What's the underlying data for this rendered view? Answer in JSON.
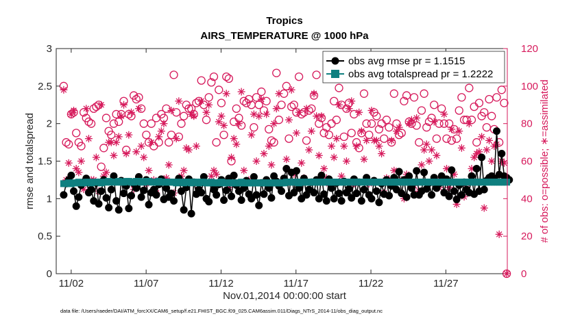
{
  "colors": {
    "rmse": "#000000",
    "spread": "#0f7f7f",
    "obs_count": "#d6195b",
    "axis": "#262626"
  },
  "chart_data": {
    "type": "line",
    "title": "Tropics",
    "subtitle": "AIRS_TEMPERATURE @ 1000 hPa",
    "xlabel": "Nov.01,2014 00:00:00 start",
    "ylabel": "rmse and totalspread",
    "y2label": "# of obs: o=possible; ∗=assimilated",
    "footer": "data file: /Users/raeder/DAI/ATM_forcXX/CAM6_setup/f.e21.FHIST_BGC.f09_025.CAM6assim.011/Diags_NTrS_2014-11/obs_diag_output.nc",
    "xlim": [
      0.5,
      30.6
    ],
    "ylim": [
      0,
      3
    ],
    "y2lim": [
      0,
      120
    ],
    "x_ticks": [
      1.5,
      6.5,
      11.5,
      16.5,
      21.5,
      26.5
    ],
    "x_tick_labels": [
      "11/02",
      "11/07",
      "11/12",
      "11/17",
      "11/22",
      "11/27"
    ],
    "y_ticks": [
      "0",
      "0.5",
      "1",
      "1.5",
      "2",
      "2.5",
      "3"
    ],
    "y2_ticks": [
      "0",
      "20",
      "40",
      "60",
      "80",
      "100",
      "120"
    ],
    "legend_position": "top-right",
    "series": [
      {
        "name": "obs avg rmse pr = 1.1515",
        "axis": "left",
        "marker": "filled-circle",
        "values": [
          1.05,
          1.2,
          1.25,
          1.31,
          1.1,
          0.9,
          1.02,
          1.18,
          1.22,
          1.27,
          1.08,
          1.12,
          0.97,
          1.21,
          0.93,
          1.1,
          1.25,
          1.01,
          0.88,
          1.12,
          1.3,
          0.97,
          0.85,
          1.24,
          1.07,
          1.17,
          0.87,
          1.04,
          1.2,
          1.14,
          1.29,
          1.02,
          1.11,
          1.25,
          0.92,
          1.08,
          1.12,
          1.05,
          1.19,
          1.26,
          0.99,
          1.14,
          1.02,
          1.07,
          0.97,
          1.22,
          1.27,
          1.1,
          0.85,
          1.15,
          1.26,
          0.8,
          1.22,
          1.06,
          1.12,
          1.08,
          1.29,
          1.0,
          0.96,
          1.21,
          1.12,
          1.05,
          1.19,
          1.25,
          0.98,
          1.11,
          1.27,
          1.03,
          1.31,
          1.18,
          1.1,
          0.98,
          1.14,
          1.24,
          1.06,
          1.0,
          1.29,
          1.05,
          0.91,
          1.21,
          1.06,
          1.25,
          1.14,
          1.01,
          1.3,
          1.23,
          1.17,
          1.1,
          1.27,
          1.4,
          1.04,
          1.35,
          1.08,
          1.37,
          1.14,
          1.0,
          1.27,
          1.05,
          1.12,
          1.22,
          1.08,
          1.25,
          1.0,
          1.31,
          1.06,
          0.97,
          1.26,
          1.14,
          1.0,
          1.21,
          1.07,
          0.97,
          1.23,
          1.08,
          1.13,
          1.01,
          1.26,
          1.07,
          1.22,
          0.97,
          1.12,
          1.28,
          1.05,
          1.0,
          1.24,
          1.1,
          0.95,
          1.2,
          1.06,
          1.25,
          1.04,
          1.17,
          1.28,
          1.12,
          1.36,
          1.07,
          1.25,
          1.02,
          1.3,
          1.14,
          1.05,
          1.37,
          1.05,
          1.1,
          1.35,
          1.13,
          1.21,
          1.05,
          1.28,
          1.14,
          1.2,
          1.3,
          1.08,
          1.26,
          1.03,
          1.38,
          1.1,
          0.99,
          1.18,
          1.05,
          1.22,
          1.12,
          1.08,
          1.3,
          1.06,
          1.4,
          1.1,
          1.55,
          1.12,
          1.24,
          1.28,
          1.3,
          1.27,
          1.9,
          1.32,
          1.6,
          1.3,
          1.28,
          1.25
        ]
      },
      {
        "name": "obs avg totalspread pr = 1.2222",
        "axis": "left",
        "marker": "filled-square",
        "values": [
          1.2,
          1.2,
          1.21,
          1.2,
          1.21,
          1.21,
          1.22,
          1.21,
          1.21,
          1.22,
          1.22,
          1.21,
          1.22,
          1.22,
          1.22,
          1.21,
          1.22,
          1.22,
          1.23,
          1.22,
          1.22,
          1.22,
          1.23,
          1.22,
          1.22,
          1.23,
          1.23,
          1.22,
          1.22,
          1.23,
          1.23,
          1.22,
          1.22,
          1.23,
          1.23,
          1.22,
          1.22,
          1.22,
          1.23,
          1.22,
          1.22,
          1.22,
          1.22,
          1.22,
          1.22,
          1.21,
          1.22,
          1.22,
          1.21,
          1.22,
          1.22,
          1.21,
          1.22,
          1.22,
          1.21,
          1.22,
          1.22,
          1.21,
          1.21,
          1.22,
          1.21,
          1.21,
          1.21,
          1.22,
          1.21,
          1.21,
          1.21,
          1.21,
          1.21,
          1.21,
          1.21,
          1.22,
          1.21,
          1.21,
          1.21,
          1.21,
          1.21,
          1.21,
          1.21,
          1.21,
          1.21,
          1.21,
          1.21,
          1.21,
          1.21,
          1.21,
          1.21,
          1.21,
          1.21,
          1.22,
          1.22,
          1.22,
          1.22,
          1.22,
          1.21,
          1.22,
          1.22,
          1.22,
          1.22,
          1.22,
          1.22,
          1.22,
          1.22,
          1.22,
          1.22,
          1.22,
          1.22,
          1.22,
          1.22,
          1.22,
          1.22,
          1.22,
          1.22,
          1.22,
          1.22,
          1.22,
          1.22,
          1.22,
          1.22,
          1.22,
          1.22,
          1.22,
          1.22,
          1.22,
          1.22,
          1.22,
          1.22,
          1.22,
          1.22,
          1.22,
          1.22,
          1.22,
          1.22,
          1.22,
          1.22,
          1.22,
          1.22,
          1.22,
          1.22,
          1.22,
          1.22,
          1.22,
          1.22,
          1.22,
          1.22,
          1.22,
          1.22,
          1.22,
          1.22,
          1.22,
          1.22,
          1.22,
          1.22,
          1.22,
          1.22,
          1.22,
          1.22,
          1.22,
          1.22,
          1.22,
          1.22,
          1.22,
          1.22,
          1.22,
          1.22,
          1.22,
          1.22,
          1.22,
          1.22,
          1.22,
          1.22,
          1.22,
          1.22,
          1.22,
          1.22,
          1.22,
          1.22,
          1.22
        ]
      },
      {
        "name": "possible",
        "axis": "right",
        "marker": "open-circle",
        "values": [
          100,
          70,
          69,
          85,
          86,
          75,
          70,
          68,
          86,
          83,
          81,
          80,
          88,
          89,
          90,
          57,
          67,
          83,
          76,
          74,
          80,
          85,
          81,
          85,
          92,
          66,
          85,
          84,
          95,
          93,
          94,
          88,
          80,
          74,
          70,
          80,
          68,
          83,
          70,
          85,
          83,
          88,
          70,
          74,
          106,
          86,
          73,
          80,
          84,
          90,
          88,
          88,
          85,
          91,
          92,
          103,
          90,
          82,
          94,
          102,
          105,
          70,
          98,
          91,
          74,
          105,
          104,
          60,
          81,
          88,
          83,
          79,
          92,
          91,
          93,
          90,
          78,
          94,
          90,
          97,
          87,
          92,
          77,
          71,
          70,
          107,
          82,
          90,
          96,
          100,
          72,
          89,
          90,
          86,
          105,
          85,
          86,
          71,
          87,
          88,
          95,
          106,
          80,
          83,
          75,
          78,
          74,
          80,
          92,
          82,
          99,
          90,
          73,
          88,
          91,
          75,
          85,
          70,
          67,
          75,
          96,
          80,
          74,
          80,
          86,
          84,
          77,
          80,
          72,
          82,
          78,
          70,
          96,
          80,
          74,
          75,
          92,
          95,
          81,
          80,
          94,
          79,
          70,
          87,
          96,
          78,
          81,
          83,
          90,
          72,
          80,
          88,
          80,
          72,
          80,
          71,
          77,
          72,
          87,
          94,
          82,
          82,
          99,
          82,
          89,
          70,
          91,
          84,
          86,
          78,
          93,
          84,
          77,
          94,
          70,
          98,
          91,
          0
        ]
      },
      {
        "name": "assimilated",
        "axis": "right",
        "marker": "asterisk",
        "values": [
          98,
          50,
          59,
          85,
          87,
          56,
          54,
          60,
          45,
          88,
          72,
          50,
          50,
          62,
          44,
          90,
          52,
          54,
          70,
          70,
          63,
          70,
          73,
          84,
          90,
          64,
          74,
          86,
          45,
          65,
          88,
          68,
          62,
          48,
          55,
          70,
          50,
          43,
          73,
          76,
          80,
          51,
          58,
          87,
          43,
          72,
          92,
          52,
          55,
          67,
          66,
          85,
          84,
          68,
          46,
          92,
          50,
          86,
          90,
          52,
          55,
          53,
          81,
          84,
          79,
          96,
          46,
          62,
          72,
          69,
          80,
          97,
          55,
          49,
          50,
          74,
          85,
          60,
          84,
          93,
          64,
          85,
          68,
          58,
          80,
          88,
          96,
          49,
          49,
          61,
          82,
          98,
          53,
          75,
          86,
          59,
          51,
          88,
          66,
          76,
          96,
          84,
          63,
          84,
          56,
          51,
          48,
          68,
          62,
          72,
          90,
          52,
          68,
          60,
          88,
          92,
          48,
          68,
          86,
          76,
          61,
          71,
          48,
          87,
          71,
          71,
          68,
          64,
          43,
          51,
          50,
          71,
          55,
          76,
          78,
          50,
          40,
          53,
          80,
          82,
          47,
          83,
          44,
          58,
          66,
          69,
          60,
          66,
          81,
          63,
          46,
          51,
          85,
          56,
          46,
          77,
          53,
          37,
          76,
          67,
          41,
          48,
          80,
          56,
          62,
          64,
          65,
          73,
          35,
          66,
          71,
          60,
          68,
          69,
          21,
          60,
          59,
          0
        ]
      }
    ]
  }
}
